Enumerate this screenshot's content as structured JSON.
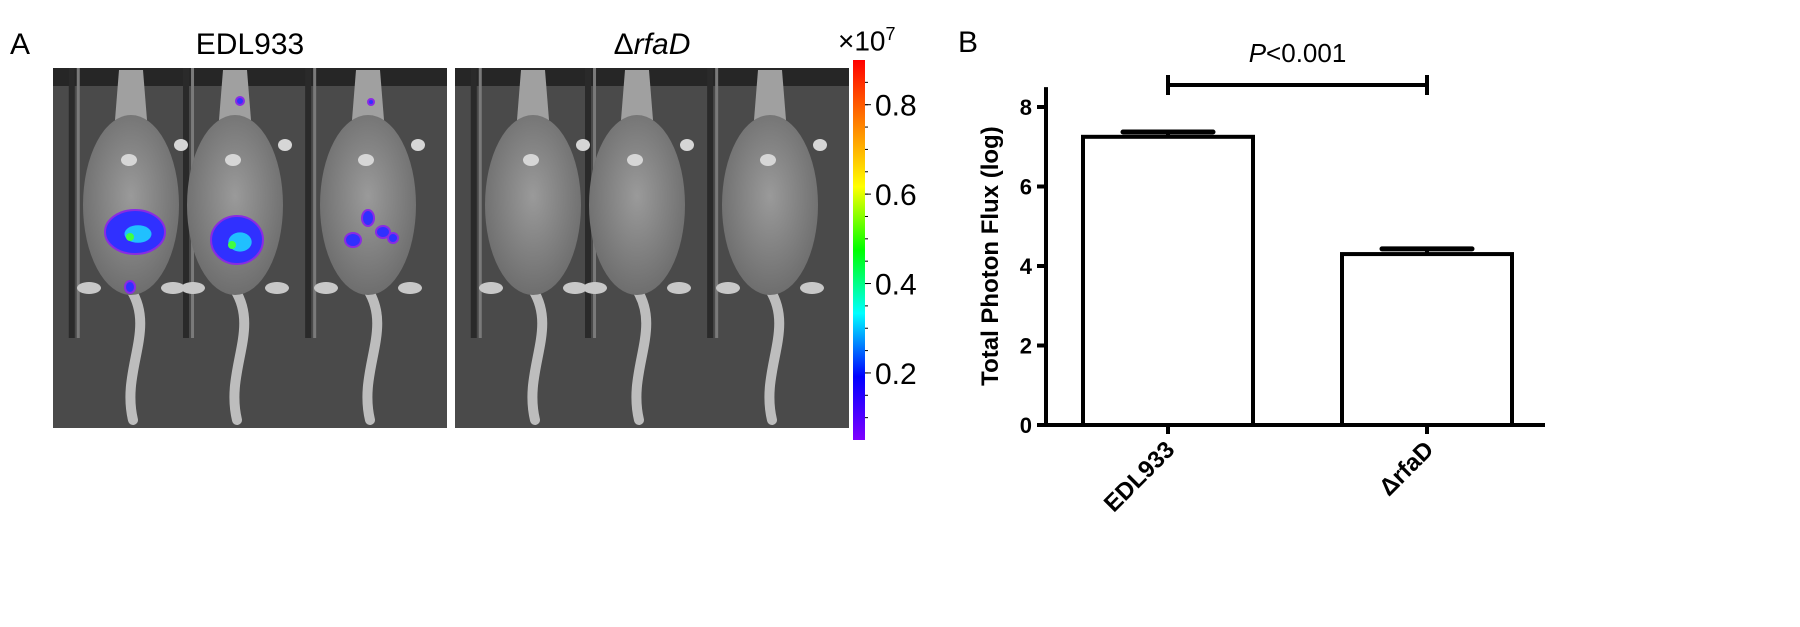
{
  "panel_a": {
    "letter": "A",
    "groups": [
      {
        "label": "EDL933",
        "italic": false
      },
      {
        "label_prefix": "Δ",
        "label_italic": "rfaD"
      }
    ],
    "colorbar": {
      "multiplier": "×10",
      "exponent": "7",
      "ticks": [
        "0.8",
        "0.6",
        "0.4",
        "0.2"
      ],
      "tick_values": [
        0.8,
        0.6,
        0.4,
        0.2
      ],
      "range": [
        0.05,
        0.9
      ],
      "colormap": [
        "#7f00ff",
        "#0000ff",
        "#00ffff",
        "#00ff00",
        "#ffff00",
        "#ff8000",
        "#ff0000"
      ]
    }
  },
  "panel_b": {
    "letter": "B"
  },
  "chart_data": {
    "type": "bar",
    "categories": [
      "EDL933",
      "ΔrfaD"
    ],
    "values": [
      7.25,
      4.3
    ],
    "errors": [
      0.12,
      0.13
    ],
    "ylabel": "Total Photon Flux (log)",
    "ylim": [
      0,
      8.5
    ],
    "yticks": [
      0,
      2,
      4,
      6,
      8
    ],
    "grid": false,
    "bar_fill": "#ffffff",
    "bar_stroke": "#000000",
    "annotation": {
      "italic": "P",
      "text": "<0.001",
      "between": [
        0,
        1
      ]
    }
  }
}
